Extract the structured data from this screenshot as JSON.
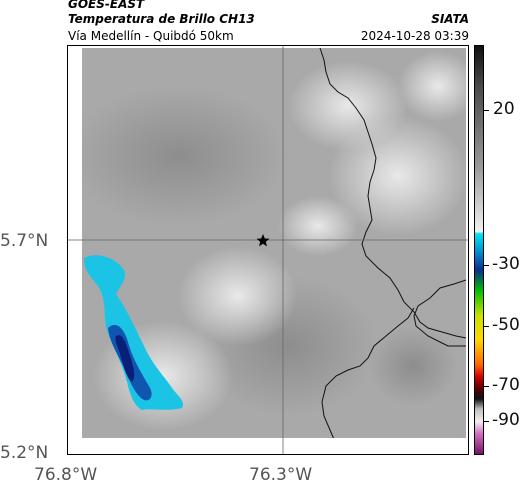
{
  "header": {
    "satellite": "GOES-EAST",
    "product": "Temperatura de Brillo CH13",
    "region": "Vía Medellín - Quibdó 50km",
    "organization": "SIATA",
    "timestamp": "2024-10-28 03:39"
  },
  "axes": {
    "lat_ticks": [
      "5.7°N",
      "5.2°N"
    ],
    "lon_ticks": [
      "76.8°W",
      "76.3°W"
    ]
  },
  "colorbar": {
    "ticks": [
      "20",
      "-30",
      "-50",
      "-70",
      "-90"
    ]
  },
  "marker": {
    "icon": "star-icon"
  },
  "colors": {
    "cloud_gray": "#a6a6a6",
    "cold_cyan": "#19c6e6",
    "deep_blue": "#0a1f7a"
  }
}
